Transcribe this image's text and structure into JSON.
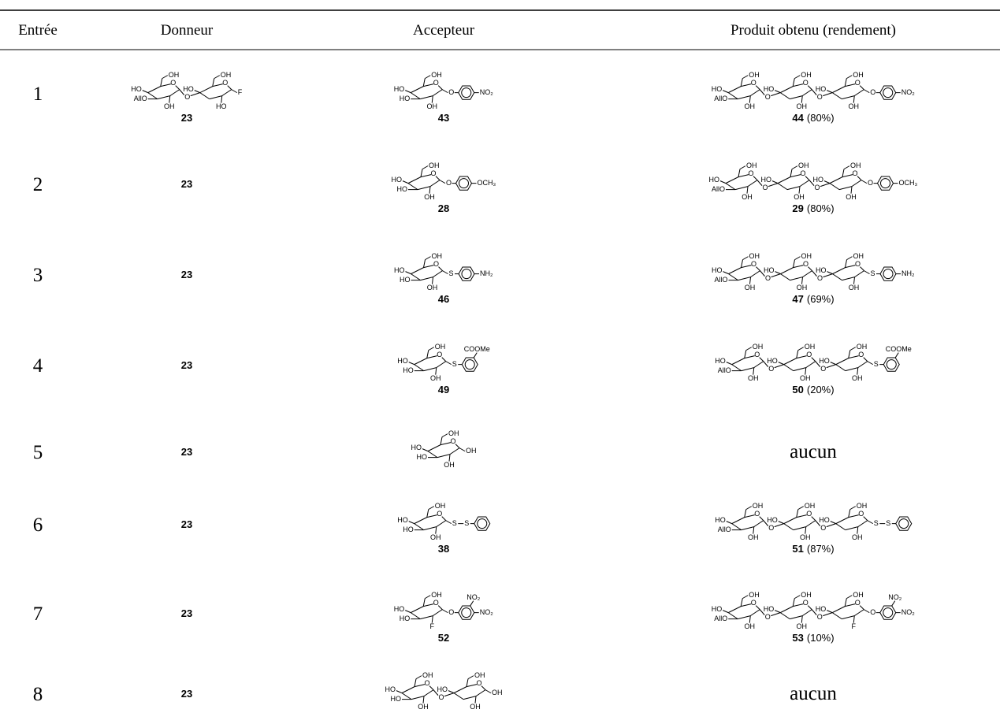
{
  "header": [
    "Entrée",
    "Donneur",
    "Accepteur",
    "Produit obtenu (rendement)"
  ],
  "rows": [
    {
      "entry": "1",
      "donor": {
        "label": "23",
        "structure": {
          "units": [
            {
              "c4": "HO",
              "c3": "AllO",
              "c6": "OH",
              "c2": "OH",
              "ring": "O"
            },
            {
              "c4": "HO",
              "c6": "OH",
              "c2": "HO",
              "ring": "O"
            }
          ],
          "links": [
            "O"
          ],
          "tail": {
            "atoms": [
              "F"
            ]
          }
        }
      },
      "acceptor": {
        "label": "43",
        "structure": {
          "units": [
            {
              "c4": "HO",
              "c3": "HO",
              "c6": "OH",
              "c2": "OH",
              "ring": "O"
            }
          ],
          "tail": {
            "atoms": [
              "O"
            ],
            "aryl": true,
            "para": "NO₂"
          }
        }
      },
      "product": {
        "label": "44",
        "yield": "(80%)",
        "structure": {
          "units": [
            {
              "c4": "HO",
              "c3": "AllO",
              "c6": "OH",
              "c2": "OH",
              "ring": "O"
            },
            {
              "c4": "HO",
              "c6": "OH",
              "c2": "OH",
              "ring": "O"
            },
            {
              "c4": "HO",
              "c6": "OH",
              "c2": "OH",
              "ring": "O"
            }
          ],
          "links": [
            "O",
            "O"
          ],
          "tail": {
            "atoms": [
              "O"
            ],
            "aryl": true,
            "para": "NO₂"
          }
        }
      }
    },
    {
      "entry": "2",
      "donor": {
        "label": "23"
      },
      "acceptor": {
        "label": "28",
        "structure": {
          "units": [
            {
              "c4": "HO",
              "c3": "HO",
              "c6": "OH",
              "c2": "OH",
              "ring": "O"
            }
          ],
          "tail": {
            "atoms": [
              "O"
            ],
            "aryl": true,
            "para": "OCH₃"
          }
        }
      },
      "product": {
        "label": "29",
        "yield": "(80%)",
        "structure": {
          "units": [
            {
              "c4": "HO",
              "c3": "AllO",
              "c6": "OH",
              "c2": "OH",
              "ring": "O"
            },
            {
              "c4": "HO",
              "c6": "OH",
              "c2": "OH",
              "ring": "O"
            },
            {
              "c4": "HO",
              "c6": "OH",
              "c2": "OH",
              "ring": "O"
            }
          ],
          "links": [
            "O",
            "O"
          ],
          "tail": {
            "atoms": [
              "O"
            ],
            "aryl": true,
            "para": "OCH₃"
          }
        }
      }
    },
    {
      "entry": "3",
      "donor": {
        "label": "23"
      },
      "acceptor": {
        "label": "46",
        "structure": {
          "units": [
            {
              "c4": "HO",
              "c3": "HO",
              "c6": "OH",
              "c2": "OH",
              "ring": "O"
            }
          ],
          "tail": {
            "atoms": [
              "S"
            ],
            "aryl": true,
            "para": "NH₂"
          }
        }
      },
      "product": {
        "label": "47",
        "yield": "(69%)",
        "structure": {
          "units": [
            {
              "c4": "HO",
              "c3": "AllO",
              "c6": "OH",
              "c2": "OH",
              "ring": "O"
            },
            {
              "c4": "HO",
              "c6": "OH",
              "c2": "OH",
              "ring": "O"
            },
            {
              "c4": "HO",
              "c6": "OH",
              "c2": "OH",
              "ring": "O"
            }
          ],
          "links": [
            "O",
            "O"
          ],
          "tail": {
            "atoms": [
              "S"
            ],
            "aryl": true,
            "para": "NH₂"
          }
        }
      }
    },
    {
      "entry": "4",
      "donor": {
        "label": "23"
      },
      "acceptor": {
        "label": "49",
        "structure": {
          "units": [
            {
              "c4": "HO",
              "c3": "HO",
              "c6": "OH",
              "c2": "OH",
              "ring": "O"
            }
          ],
          "tail": {
            "atoms": [
              "S"
            ],
            "aryl": true,
            "ortho": "COOMe"
          }
        }
      },
      "product": {
        "label": "50",
        "yield": "(20%)",
        "structure": {
          "units": [
            {
              "c4": "HO",
              "c3": "AllO",
              "c6": "OH",
              "c2": "OH",
              "ring": "O"
            },
            {
              "c4": "HO",
              "c6": "OH",
              "c2": "OH",
              "ring": "O"
            },
            {
              "c4": "HO",
              "c6": "OH",
              "c2": "OH",
              "ring": "O"
            }
          ],
          "links": [
            "O",
            "O"
          ],
          "tail": {
            "atoms": [
              "S"
            ],
            "aryl": true,
            "ortho": "COOMe"
          }
        }
      }
    },
    {
      "entry": "5",
      "donor": {
        "label": "23"
      },
      "acceptor": {
        "structure": {
          "units": [
            {
              "c4": "HO",
              "c3": "HO",
              "c6": "OH",
              "c2": "OH",
              "ring": "O"
            }
          ],
          "tail": {
            "atoms": [
              "OH"
            ]
          }
        }
      },
      "product": {
        "text": "aucun"
      }
    },
    {
      "entry": "6",
      "donor": {
        "label": "23"
      },
      "acceptor": {
        "label": "38",
        "structure": {
          "units": [
            {
              "c4": "HO",
              "c3": "HO",
              "c6": "OH",
              "c2": "OH",
              "ring": "O"
            }
          ],
          "tail": {
            "atoms": [
              "S",
              "S"
            ],
            "aryl": true
          }
        }
      },
      "product": {
        "label": "51",
        "yield": "(87%)",
        "structure": {
          "units": [
            {
              "c4": "HO",
              "c3": "AllO",
              "c6": "OH",
              "c2": "OH",
              "ring": "O"
            },
            {
              "c4": "HO",
              "c6": "OH",
              "c2": "OH",
              "ring": "O"
            },
            {
              "c4": "HO",
              "c6": "OH",
              "c2": "OH",
              "ring": "O"
            }
          ],
          "links": [
            "O",
            "O"
          ],
          "tail": {
            "atoms": [
              "S",
              "S"
            ],
            "aryl": true
          }
        }
      }
    },
    {
      "entry": "7",
      "donor": {
        "label": "23"
      },
      "acceptor": {
        "label": "52",
        "structure": {
          "units": [
            {
              "c4": "HO",
              "c3": "HO",
              "c6": "OH",
              "c2": "F",
              "ring": "O"
            }
          ],
          "tail": {
            "atoms": [
              "O"
            ],
            "aryl": true,
            "ortho": "NO₂",
            "para": "NO₂"
          }
        }
      },
      "product": {
        "label": "53",
        "yield": "(10%)",
        "structure": {
          "units": [
            {
              "c4": "HO",
              "c3": "AllO",
              "c6": "OH",
              "c2": "OH",
              "ring": "O"
            },
            {
              "c4": "HO",
              "c6": "OH",
              "c2": "OH",
              "ring": "O"
            },
            {
              "c4": "HO",
              "c6": "OH",
              "c2": "F",
              "ring": "O"
            }
          ],
          "links": [
            "O",
            "O"
          ],
          "tail": {
            "atoms": [
              "O"
            ],
            "aryl": true,
            "ortho": "NO₂",
            "para": "NO₂"
          }
        }
      }
    },
    {
      "entry": "8",
      "donor": {
        "label": "23"
      },
      "acceptor": {
        "structure": {
          "units": [
            {
              "c4": "HO",
              "c3": "HO",
              "c6": "OH",
              "c2": "OH",
              "ring": "O"
            },
            {
              "c4": "HO",
              "c6": "OH",
              "c2": "OH",
              "ring": "O"
            }
          ],
          "links": [
            "O"
          ],
          "tail": {
            "atoms": [
              "OH"
            ]
          }
        }
      },
      "product": {
        "text": "aucun"
      }
    }
  ]
}
